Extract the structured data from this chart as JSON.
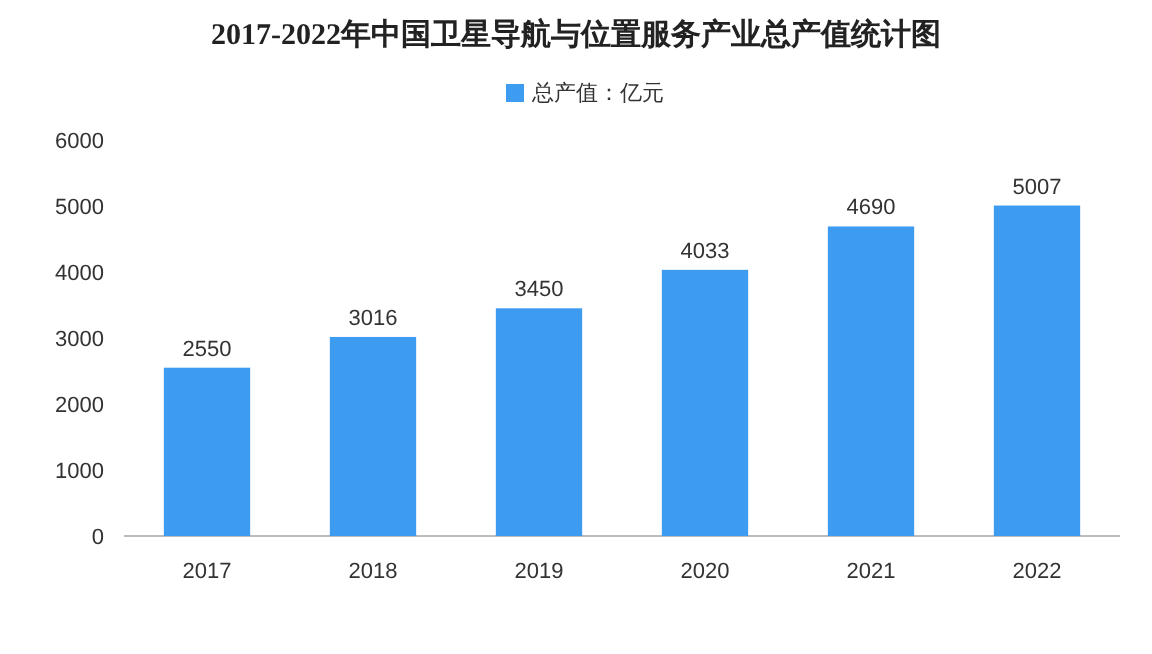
{
  "chart_data": {
    "type": "bar",
    "title": "2017-2022年中国卫星导航与位置服务产业总产值统计图",
    "categories": [
      "2017",
      "2018",
      "2019",
      "2020",
      "2021",
      "2022"
    ],
    "series": [
      {
        "name": "总产值：亿元",
        "color": "#3d9cf0",
        "values": [
          2550,
          3016,
          3450,
          4033,
          4690,
          5007
        ]
      }
    ],
    "ylim": [
      0,
      6000
    ],
    "yticks": [
      0,
      1000,
      2000,
      3000,
      4000,
      5000,
      6000
    ],
    "data_labels": true,
    "legend": "top",
    "grid": false
  }
}
